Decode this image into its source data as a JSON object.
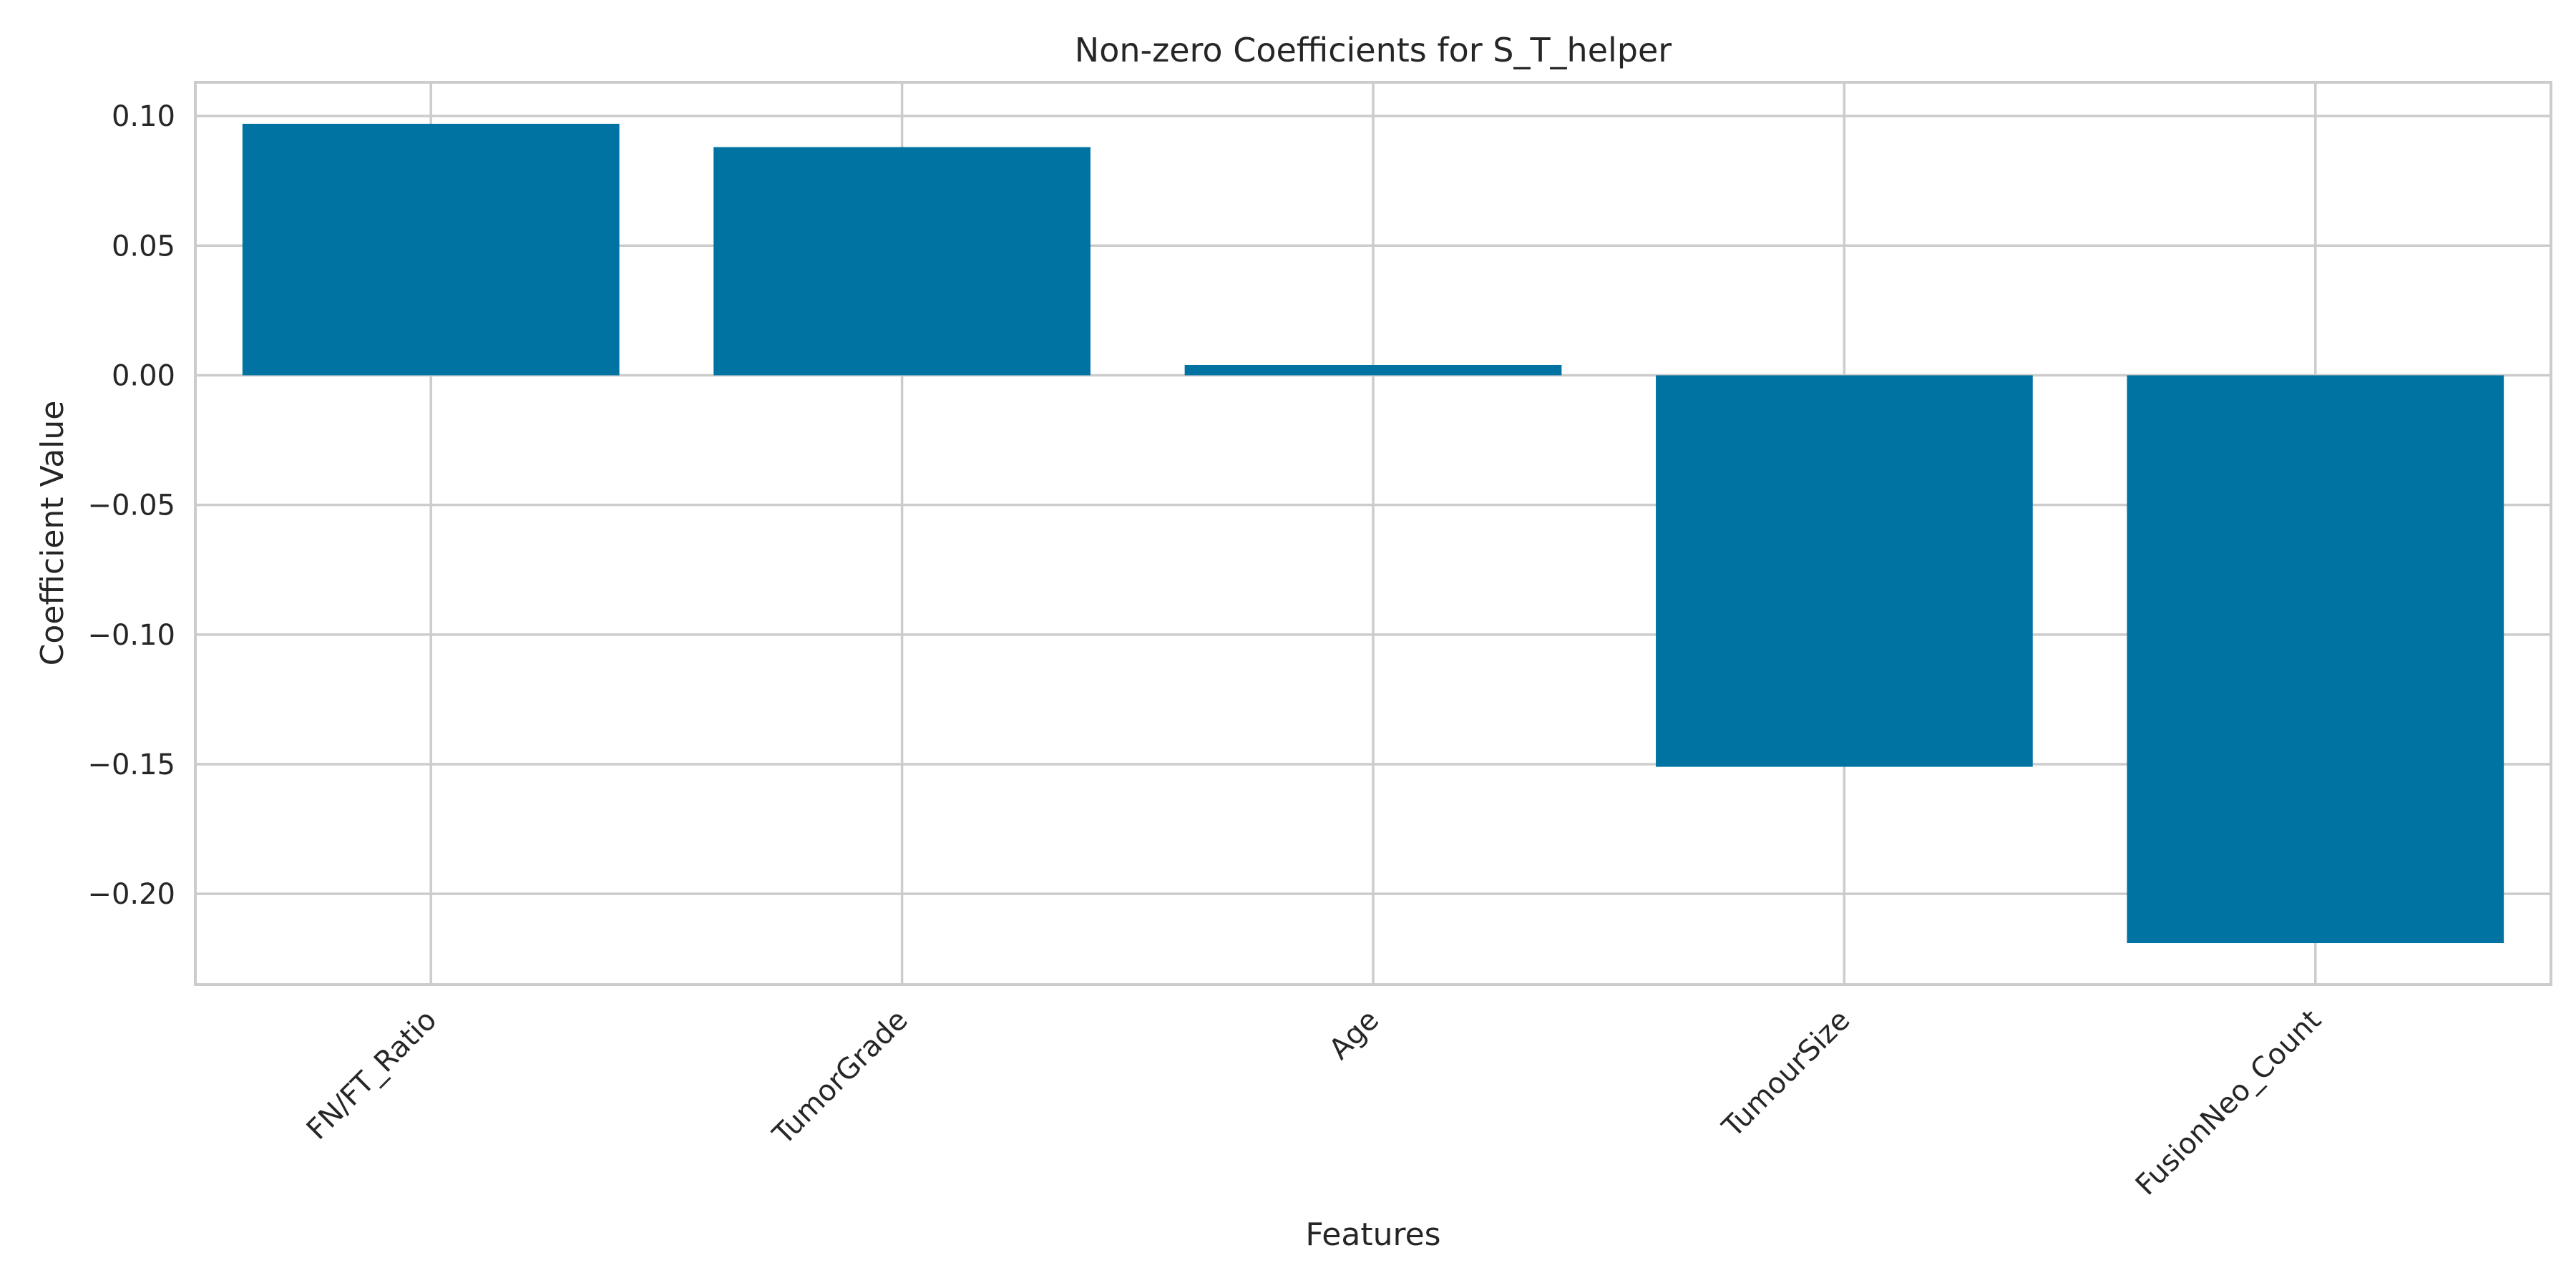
{
  "chart_data": {
    "type": "bar",
    "title": "Non-zero Coefficients for S_T_helper",
    "xlabel": "Features",
    "ylabel": "Coefficient Value",
    "categories": [
      "FN/FT_Ratio",
      "TumorGrade",
      "Age",
      "TumourSize",
      "FusionNeo_Count"
    ],
    "values": [
      0.097,
      0.088,
      0.004,
      -0.151,
      -0.219
    ],
    "yticks": [
      0.1,
      0.05,
      0.0,
      -0.05,
      -0.1,
      -0.15,
      -0.2
    ],
    "ytick_labels": [
      "0.10",
      "0.05",
      "0.00",
      "−0.05",
      "−0.10",
      "−0.15",
      "−0.20"
    ],
    "ylim": [
      -0.235,
      0.113
    ],
    "bar_color": "#0173a3",
    "grid": true,
    "legend": "none"
  }
}
